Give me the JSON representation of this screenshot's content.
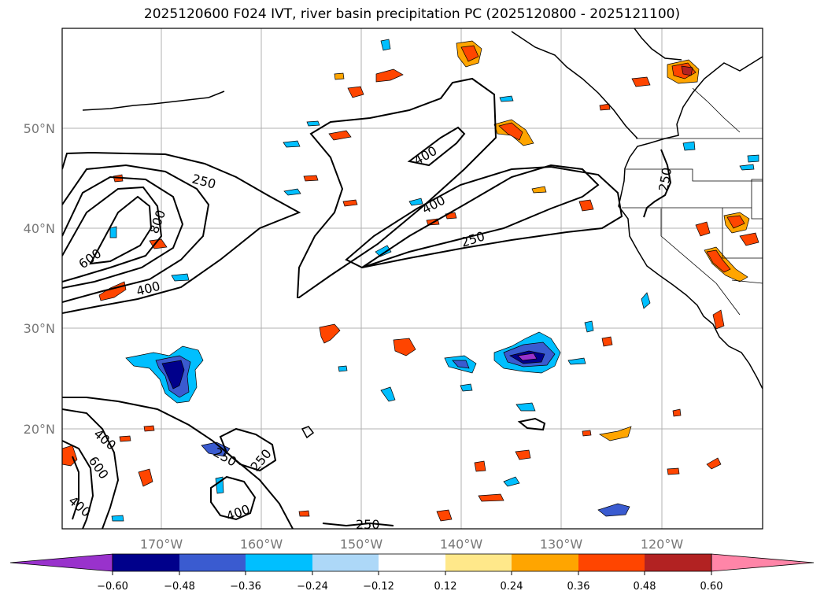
{
  "title": "2025120600 F024 IVT, river basin precipitation PC (2025120800 - 2025121100)",
  "lat_ticks": [
    {
      "label": "50°N",
      "value": 50
    },
    {
      "label": "40°N",
      "value": 40
    },
    {
      "label": "30°N",
      "value": 30
    },
    {
      "label": "20°N",
      "value": 20
    }
  ],
  "lon_ticks": [
    {
      "label": "170°W",
      "value": -170
    },
    {
      "label": "160°W",
      "value": -160
    },
    {
      "label": "150°W",
      "value": -150
    },
    {
      "label": "140°W",
      "value": -140
    },
    {
      "label": "130°W",
      "value": -130
    },
    {
      "label": "120°W",
      "value": -120
    }
  ],
  "contour_labels": [
    "250",
    "400",
    "600",
    "800",
    "400",
    "400",
    "250",
    "250",
    "400",
    "600",
    "400",
    "250",
    "250",
    "400",
    "250"
  ],
  "colorbar": {
    "colors": [
      "#9932cc",
      "#00008b",
      "#3a5bd0",
      "#00bfff",
      "#add8f8",
      "#ffffff",
      "#ffe88a",
      "#ffa500",
      "#ff4500",
      "#b22222",
      "#ff85a8"
    ],
    "tick_labels": [
      "−0.60",
      "−0.48",
      "−0.36",
      "−0.24",
      "−0.12",
      "0.12",
      "0.24",
      "0.36",
      "0.48",
      "0.60"
    ]
  }
}
